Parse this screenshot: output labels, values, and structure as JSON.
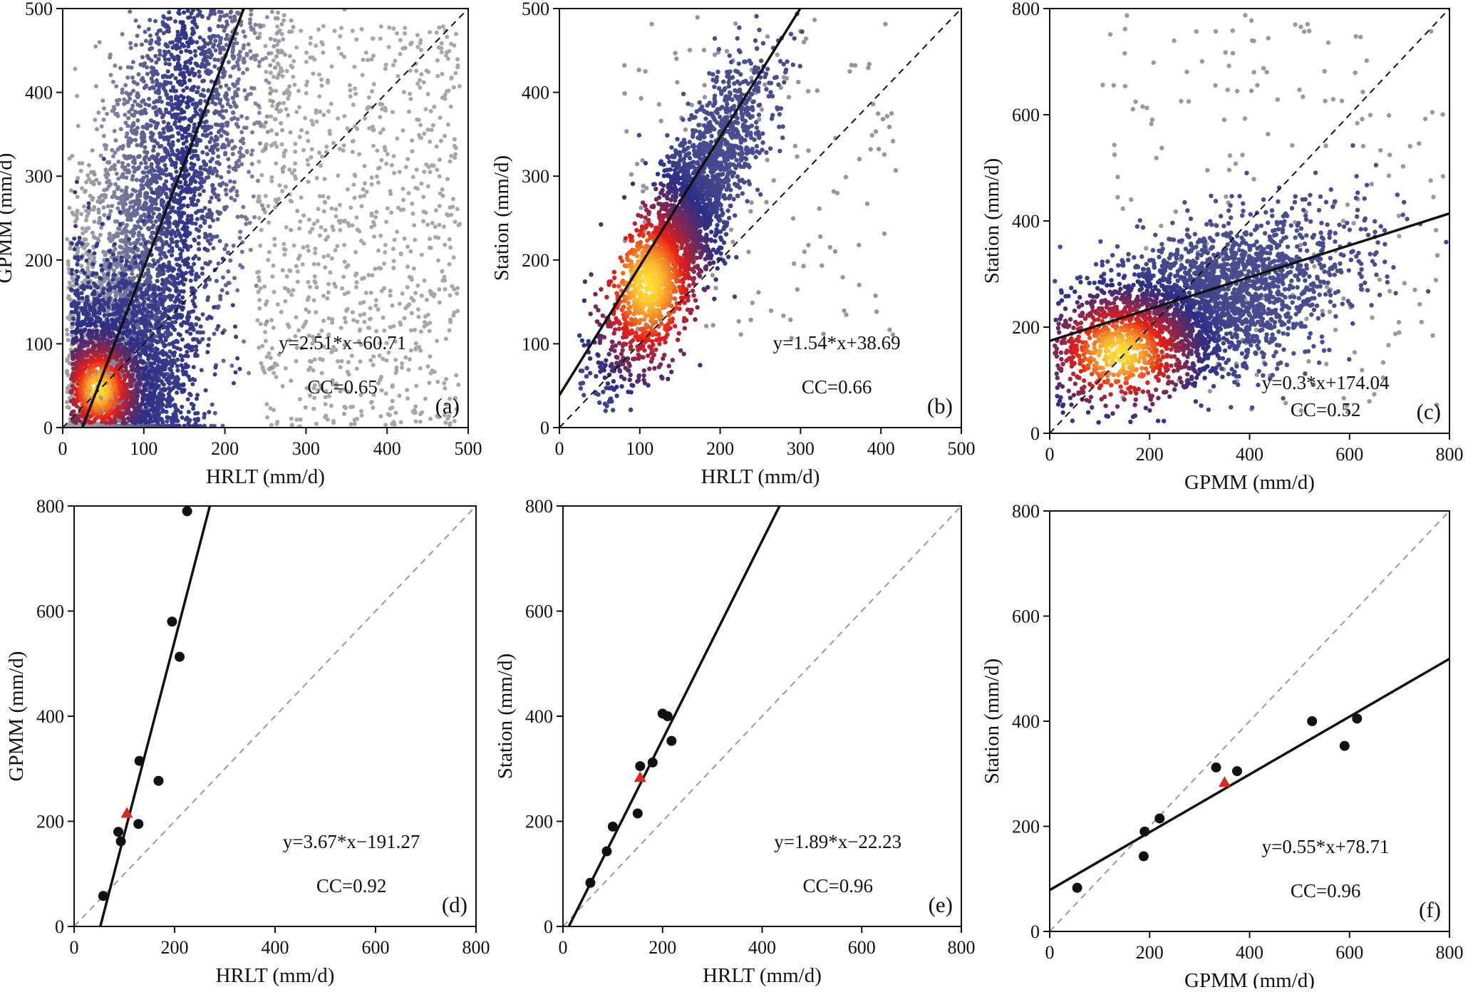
{
  "figure": {
    "colors": {
      "fit_line": "#111111",
      "one_to_one_density": "#111111",
      "one_to_one_mean": "#9a9a9a",
      "mean_points": "#111111",
      "overall_marker": "#d42a1f",
      "density_low": "#a7a7a7",
      "density_mid": "#2b2f86",
      "density_high": "#e81d14",
      "density_peak": "#ffdd33"
    }
  },
  "chart_data": [
    {
      "id": "a",
      "panel_tag": "(a)",
      "type": "scatter",
      "style": "density",
      "xlabel": "HRLT (mm/d)",
      "ylabel": "GPMM (mm/d)",
      "xlim": [
        0,
        500
      ],
      "ylim": [
        0,
        500
      ],
      "xticks": [
        0,
        100,
        200,
        300,
        400,
        500
      ],
      "yticks": [
        0,
        100,
        200,
        300,
        400,
        500
      ],
      "fit": {
        "slope": 2.51,
        "intercept": -60.71
      },
      "one_to_one": true,
      "equation": "y=2.51*x−60.71",
      "cc": "CC=0.65",
      "density_centre": {
        "x": 45,
        "y": 45
      }
    },
    {
      "id": "b",
      "panel_tag": "(b)",
      "type": "scatter",
      "style": "density",
      "xlabel": "HRLT (mm/d)",
      "ylabel": "Station (mm/d)",
      "xlim": [
        0,
        500
      ],
      "ylim": [
        0,
        500
      ],
      "xticks": [
        0,
        100,
        200,
        300,
        400,
        500
      ],
      "yticks": [
        0,
        100,
        200,
        300,
        400,
        500
      ],
      "fit": {
        "slope": 1.54,
        "intercept": 38.69
      },
      "one_to_one": true,
      "equation": "y=1.54*x+38.69",
      "cc": "CC=0.66",
      "density_centre": {
        "x": 110,
        "y": 170
      }
    },
    {
      "id": "c",
      "panel_tag": "(c)",
      "type": "scatter",
      "style": "density",
      "xlabel": "GPMM (mm/d)",
      "ylabel": "Station (mm/d)",
      "xlim": [
        0,
        800
      ],
      "ylim": [
        0,
        800
      ],
      "xticks": [
        0,
        200,
        400,
        600,
        800
      ],
      "yticks": [
        0,
        200,
        400,
        600,
        800
      ],
      "fit": {
        "slope": 0.3,
        "intercept": 174.04
      },
      "one_to_one": true,
      "equation": "y=0.3*x+174.04",
      "cc": "CC=0.52",
      "density_centre": {
        "x": 140,
        "y": 150
      }
    },
    {
      "id": "d",
      "panel_tag": "(d)",
      "type": "scatter",
      "style": "points",
      "xlabel": "HRLT (mm/d)",
      "ylabel": "GPMM (mm/d)",
      "xlim": [
        0,
        800
      ],
      "ylim": [
        0,
        800
      ],
      "xticks": [
        0,
        200,
        400,
        600,
        800
      ],
      "yticks": [
        0,
        200,
        400,
        600,
        800
      ],
      "fit": {
        "slope": 3.67,
        "intercept": -191.27
      },
      "one_to_one": true,
      "equation": "y=3.67*x−191.27",
      "cc": "CC=0.92",
      "points": [
        {
          "x": 58,
          "y": 58
        },
        {
          "x": 88,
          "y": 180
        },
        {
          "x": 93,
          "y": 162
        },
        {
          "x": 128,
          "y": 195
        },
        {
          "x": 130,
          "y": 315
        },
        {
          "x": 168,
          "y": 277
        },
        {
          "x": 195,
          "y": 580
        },
        {
          "x": 210,
          "y": 513
        },
        {
          "x": 225,
          "y": 790
        }
      ],
      "overall": {
        "x": 105,
        "y": 215
      }
    },
    {
      "id": "e",
      "panel_tag": "(e)",
      "type": "scatter",
      "style": "points",
      "xlabel": "HRLT (mm/d)",
      "ylabel": "Station (mm/d)",
      "xlim": [
        0,
        800
      ],
      "ylim": [
        0,
        800
      ],
      "xticks": [
        0,
        200,
        400,
        600,
        800
      ],
      "yticks": [
        0,
        200,
        400,
        600,
        800
      ],
      "fit": {
        "slope": 1.89,
        "intercept": -22.23
      },
      "one_to_one": true,
      "equation": "y=1.89*x−22.23",
      "cc": "CC=0.96",
      "points": [
        {
          "x": 55,
          "y": 83
        },
        {
          "x": 88,
          "y": 143
        },
        {
          "x": 100,
          "y": 190
        },
        {
          "x": 150,
          "y": 215
        },
        {
          "x": 155,
          "y": 305
        },
        {
          "x": 180,
          "y": 312
        },
        {
          "x": 200,
          "y": 405
        },
        {
          "x": 210,
          "y": 400
        },
        {
          "x": 218,
          "y": 353
        }
      ],
      "overall": {
        "x": 155,
        "y": 283
      }
    },
    {
      "id": "f",
      "panel_tag": "(f)",
      "type": "scatter",
      "style": "points",
      "xlabel": "GPMM (mm/d)",
      "ylabel": "Station (mm/d)",
      "xlim": [
        0,
        800
      ],
      "ylim": [
        0,
        800
      ],
      "xticks": [
        0,
        200,
        400,
        600,
        800
      ],
      "yticks": [
        0,
        200,
        400,
        600,
        800
      ],
      "fit": {
        "slope": 0.55,
        "intercept": 78.71
      },
      "one_to_one": true,
      "equation": "y=0.55*x+78.71",
      "cc": "CC=0.96",
      "points": [
        {
          "x": 55,
          "y": 83
        },
        {
          "x": 188,
          "y": 143
        },
        {
          "x": 190,
          "y": 190
        },
        {
          "x": 220,
          "y": 215
        },
        {
          "x": 333,
          "y": 312
        },
        {
          "x": 375,
          "y": 305
        },
        {
          "x": 525,
          "y": 400
        },
        {
          "x": 590,
          "y": 353
        },
        {
          "x": 615,
          "y": 405
        }
      ],
      "overall": {
        "x": 350,
        "y": 283
      }
    }
  ]
}
